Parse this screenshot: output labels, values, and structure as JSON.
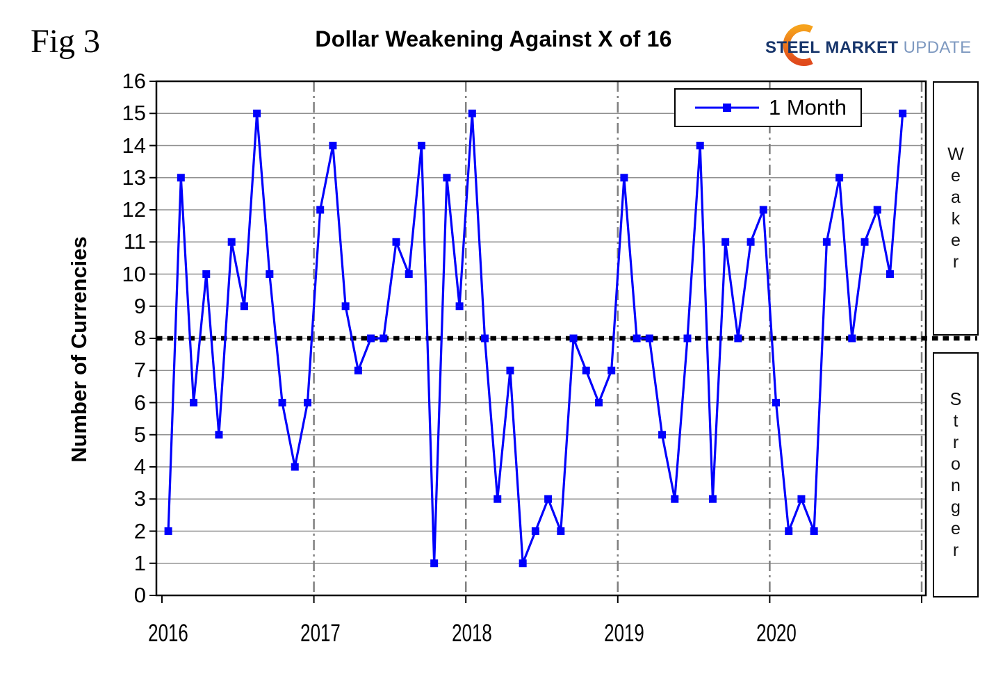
{
  "figure": {
    "fig_label": "Fig 3",
    "title": "Dollar Weakening Against X of 16"
  },
  "logo": {
    "steel": "STEEL",
    "market": "MARKET",
    "update": "UPDATE",
    "navy": "#17356B",
    "light_blue": "#7E99C0",
    "orange_top": "#F6A21C",
    "orange_bottom": "#E0491C"
  },
  "legend": {
    "label": "1 Month"
  },
  "side_labels": {
    "weaker": "Weaker",
    "stronger": "Stronger"
  },
  "axes": {
    "ylabel": "Number of Currencies",
    "y_ticks": [
      0,
      1,
      2,
      3,
      4,
      5,
      6,
      7,
      8,
      9,
      10,
      11,
      12,
      13,
      14,
      15,
      16
    ],
    "x_ticks": [
      "2016",
      "2017",
      "2018",
      "2019",
      "2020"
    ]
  },
  "colors": {
    "series": "#0000FC",
    "gridline": "#909090",
    "year_line": "#7F7F7F",
    "reference_line": "#000000",
    "border": "#000000"
  },
  "chart_data": {
    "type": "line",
    "title": "Dollar Weakening Against X of 16",
    "xlabel": "",
    "ylabel": "Number of Currencies",
    "ylim": [
      0,
      16
    ],
    "ytick_step": 1,
    "grid": true,
    "legend_position": "top-right",
    "reference_line_y": 8,
    "x_years": [
      "2016",
      "2017",
      "2018",
      "2019",
      "2020"
    ],
    "values_by_year": {
      "2016": [
        2,
        13,
        6,
        10,
        5,
        11,
        9,
        15,
        10,
        6,
        4,
        6
      ],
      "2017": [
        12,
        14,
        9,
        7,
        8,
        8,
        11,
        10,
        14,
        1,
        13,
        9
      ],
      "2018": [
        15,
        8,
        3,
        7,
        1,
        2,
        3,
        2,
        8,
        7,
        6,
        7
      ],
      "2019": [
        13,
        8,
        8,
        5,
        3,
        8,
        14,
        3,
        11,
        8,
        11,
        12
      ],
      "2020": [
        6,
        2,
        3,
        2,
        11,
        13,
        8,
        11,
        12,
        10,
        15
      ]
    },
    "series": [
      {
        "name": "1 Month",
        "color": "#0000FC",
        "marker": "square",
        "months": [
          "2016-01",
          "2016-02",
          "2016-03",
          "2016-04",
          "2016-05",
          "2016-06",
          "2016-07",
          "2016-08",
          "2016-09",
          "2016-10",
          "2016-11",
          "2016-12",
          "2017-01",
          "2017-02",
          "2017-03",
          "2017-04",
          "2017-05",
          "2017-06",
          "2017-07",
          "2017-08",
          "2017-09",
          "2017-10",
          "2017-11",
          "2017-12",
          "2018-01",
          "2018-02",
          "2018-03",
          "2018-04",
          "2018-05",
          "2018-06",
          "2018-07",
          "2018-08",
          "2018-09",
          "2018-10",
          "2018-11",
          "2018-12",
          "2019-01",
          "2019-02",
          "2019-03",
          "2019-04",
          "2019-05",
          "2019-06",
          "2019-07",
          "2019-08",
          "2019-09",
          "2019-10",
          "2019-11",
          "2019-12",
          "2020-01",
          "2020-02",
          "2020-03",
          "2020-04",
          "2020-05",
          "2020-06",
          "2020-07",
          "2020-08",
          "2020-09",
          "2020-10",
          "2020-11"
        ],
        "values": [
          2,
          13,
          6,
          10,
          5,
          11,
          9,
          15,
          10,
          6,
          4,
          6,
          12,
          14,
          9,
          7,
          8,
          8,
          11,
          10,
          14,
          1,
          13,
          9,
          15,
          8,
          3,
          7,
          1,
          2,
          3,
          2,
          8,
          7,
          6,
          7,
          13,
          8,
          8,
          5,
          3,
          8,
          14,
          3,
          11,
          8,
          11,
          12,
          6,
          2,
          3,
          2,
          11,
          13,
          8,
          11,
          12,
          10,
          15
        ]
      }
    ]
  }
}
